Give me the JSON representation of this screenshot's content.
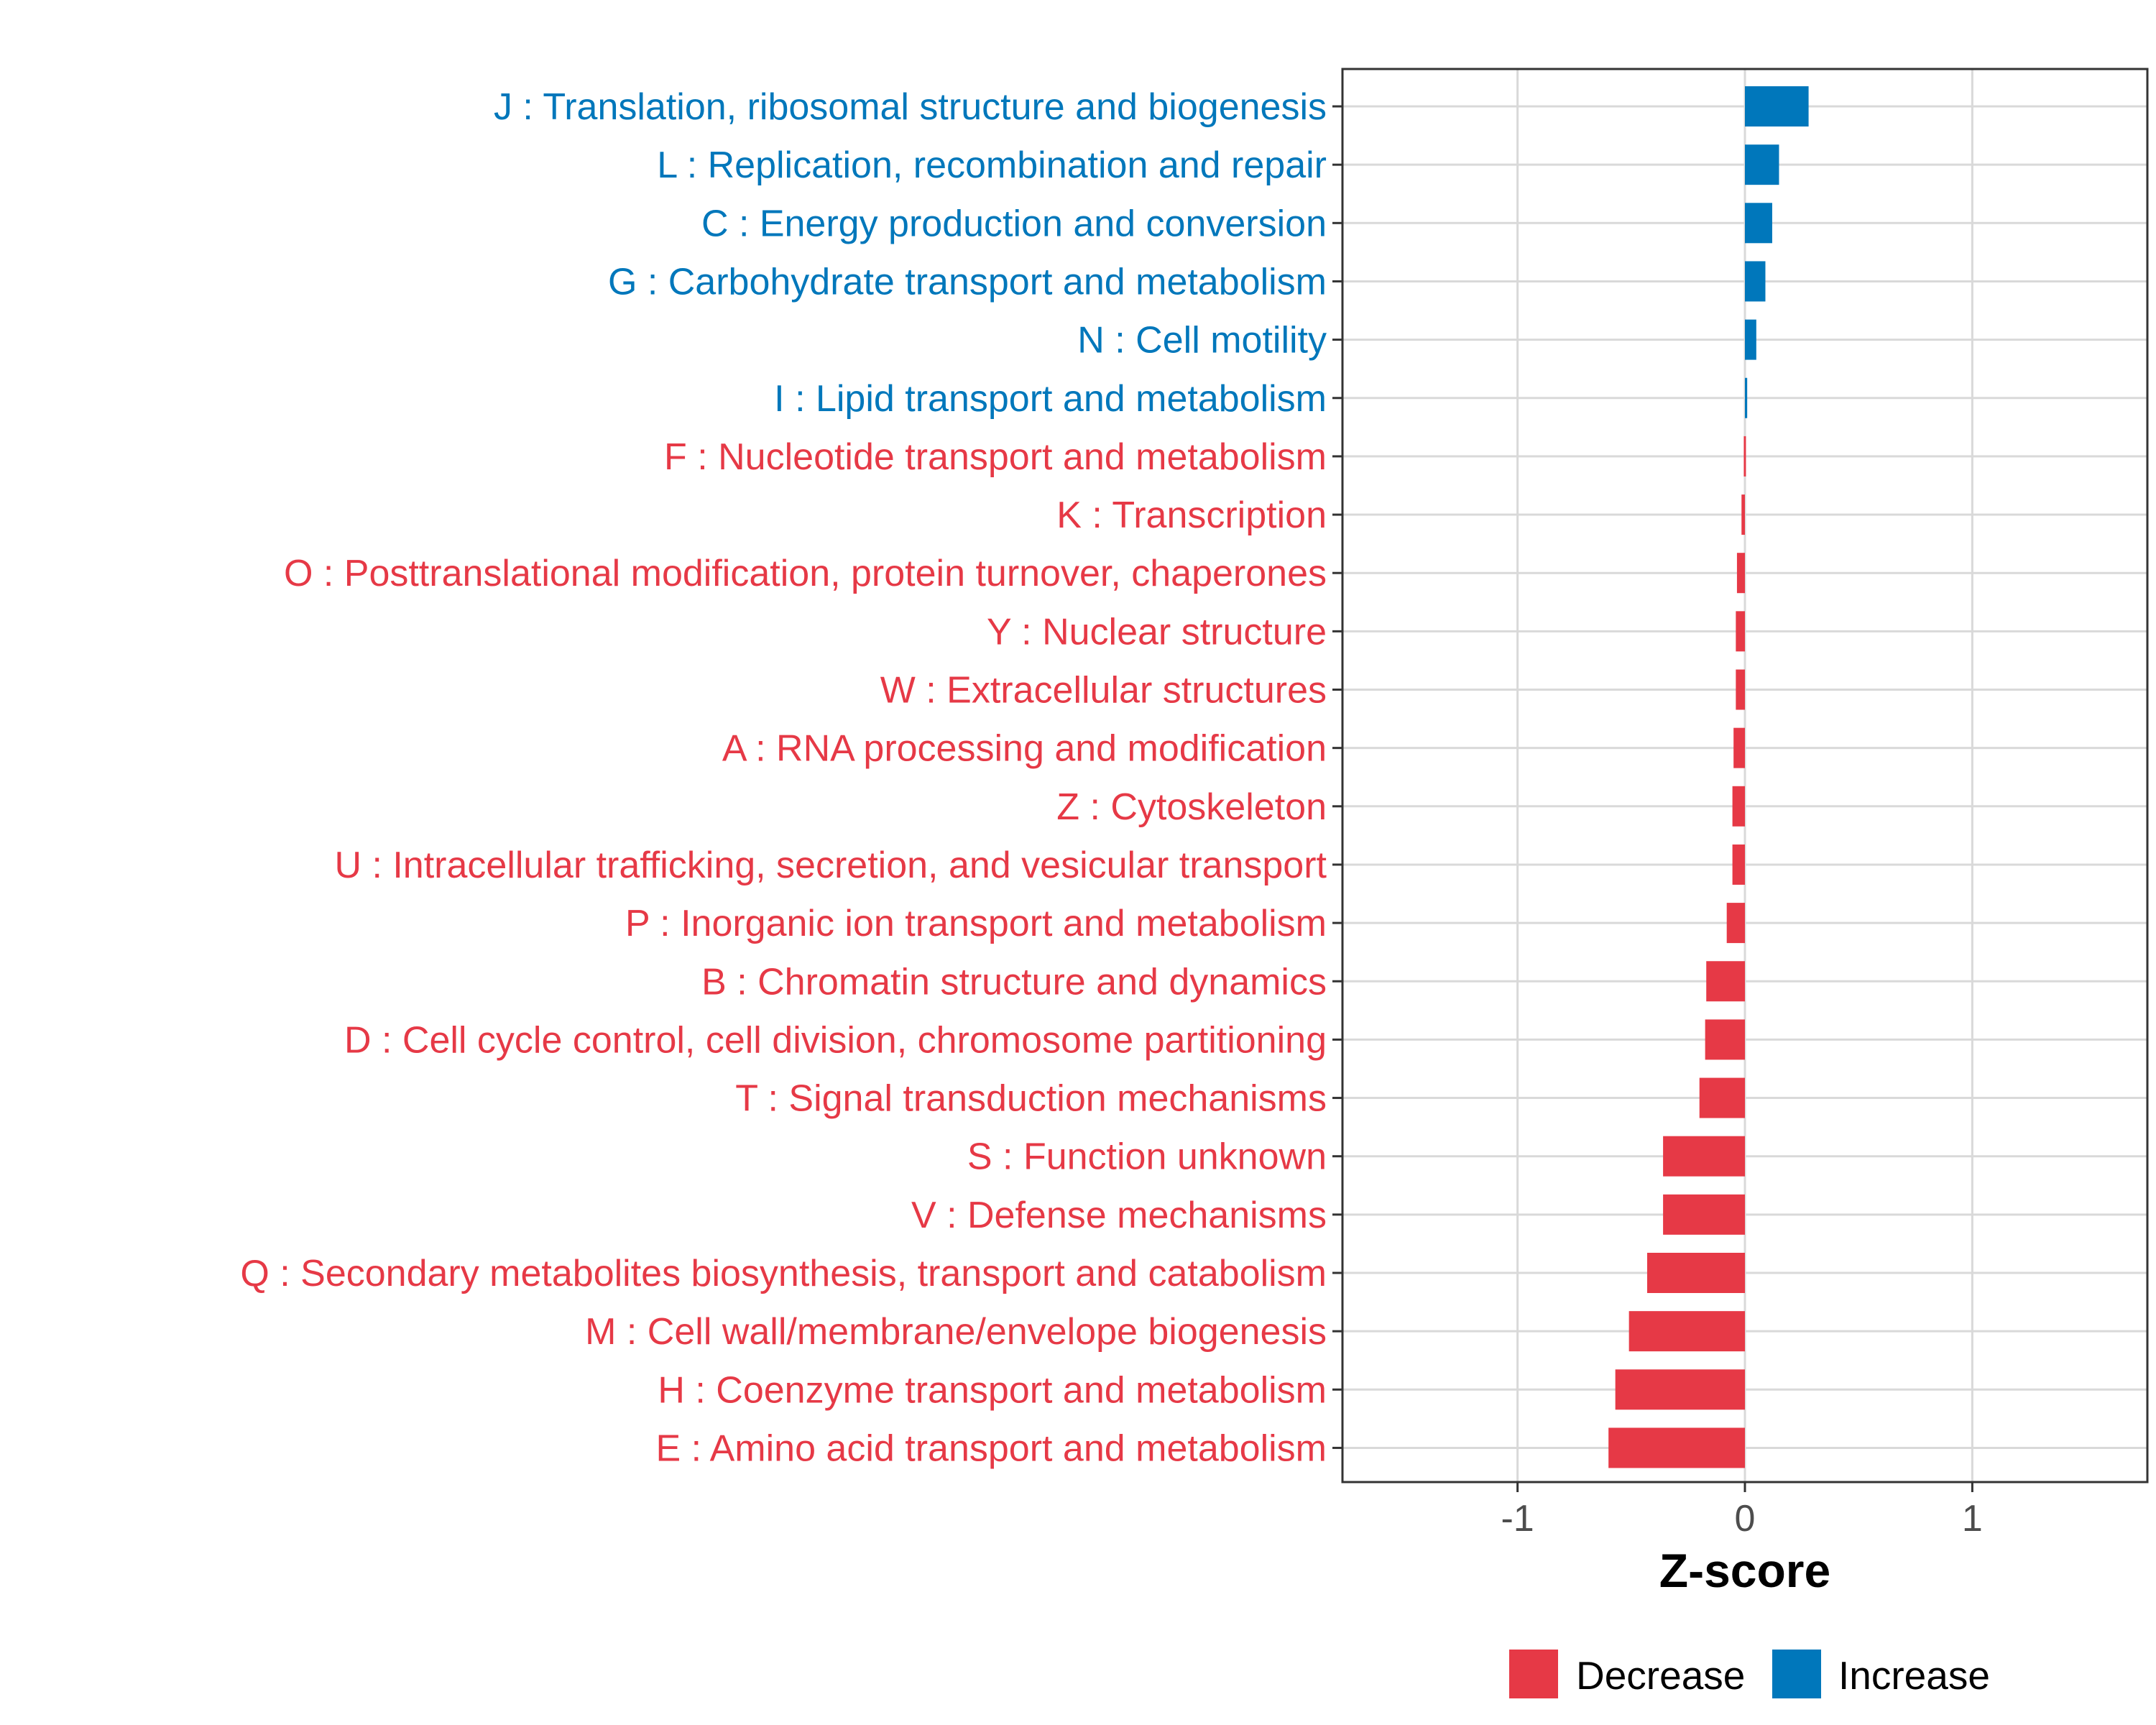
{
  "colors": {
    "increase": "#0077BB",
    "decrease": "#E63946",
    "grid": "#d9d9d9",
    "tick_text": "#4d4d4d"
  },
  "chart_data": {
    "type": "bar",
    "orientation": "horizontal",
    "title": "",
    "xlabel": "Z-score",
    "ylabel": "",
    "xlim": [
      -1.77,
      1.77
    ],
    "xticks": [
      -1,
      0,
      1
    ],
    "xtick_labels": [
      "-1",
      "0",
      "1"
    ],
    "grid": true,
    "legend_position": "bottom",
    "legend": [
      {
        "key": "decrease",
        "label": "Decrease"
      },
      {
        "key": "increase",
        "label": "Increase"
      }
    ],
    "categories": [
      {
        "label": "J : Translation, ribosomal structure and biogenesis",
        "value": 0.28,
        "direction": "increase"
      },
      {
        "label": "L : Replication, recombination and repair",
        "value": 0.15,
        "direction": "increase"
      },
      {
        "label": "C : Energy production and conversion",
        "value": 0.12,
        "direction": "increase"
      },
      {
        "label": "G : Carbohydrate transport and metabolism",
        "value": 0.09,
        "direction": "increase"
      },
      {
        "label": "N : Cell motility",
        "value": 0.05,
        "direction": "increase"
      },
      {
        "label": "I : Lipid transport and metabolism",
        "value": 0.01,
        "direction": "increase"
      },
      {
        "label": "F : Nucleotide transport and metabolism",
        "value": -0.005,
        "direction": "decrease"
      },
      {
        "label": "K : Transcription",
        "value": -0.015,
        "direction": "decrease"
      },
      {
        "label": "O : Posttranslational modification, protein turnover, chaperones",
        "value": -0.035,
        "direction": "decrease"
      },
      {
        "label": "Y : Nuclear structure",
        "value": -0.04,
        "direction": "decrease"
      },
      {
        "label": "W : Extracellular structures",
        "value": -0.04,
        "direction": "decrease"
      },
      {
        "label": "A : RNA processing and modification",
        "value": -0.05,
        "direction": "decrease"
      },
      {
        "label": "Z : Cytoskeleton",
        "value": -0.055,
        "direction": "decrease"
      },
      {
        "label": "U : Intracellular trafficking, secretion, and vesicular transport",
        "value": -0.055,
        "direction": "decrease"
      },
      {
        "label": "P : Inorganic ion transport and metabolism",
        "value": -0.08,
        "direction": "decrease"
      },
      {
        "label": "B : Chromatin structure and dynamics",
        "value": -0.17,
        "direction": "decrease"
      },
      {
        "label": "D : Cell cycle control, cell division, chromosome partitioning",
        "value": -0.175,
        "direction": "decrease"
      },
      {
        "label": "T : Signal transduction mechanisms",
        "value": -0.2,
        "direction": "decrease"
      },
      {
        "label": "S : Function unknown",
        "value": -0.36,
        "direction": "decrease"
      },
      {
        "label": "V : Defense mechanisms",
        "value": -0.36,
        "direction": "decrease"
      },
      {
        "label": "Q : Secondary metabolites biosynthesis, transport and catabolism",
        "value": -0.43,
        "direction": "decrease"
      },
      {
        "label": "M : Cell wall/membrane/envelope biogenesis",
        "value": -0.51,
        "direction": "decrease"
      },
      {
        "label": "H : Coenzyme transport and metabolism",
        "value": -0.57,
        "direction": "decrease"
      },
      {
        "label": "E : Amino acid transport and metabolism",
        "value": -0.6,
        "direction": "decrease"
      }
    ]
  }
}
